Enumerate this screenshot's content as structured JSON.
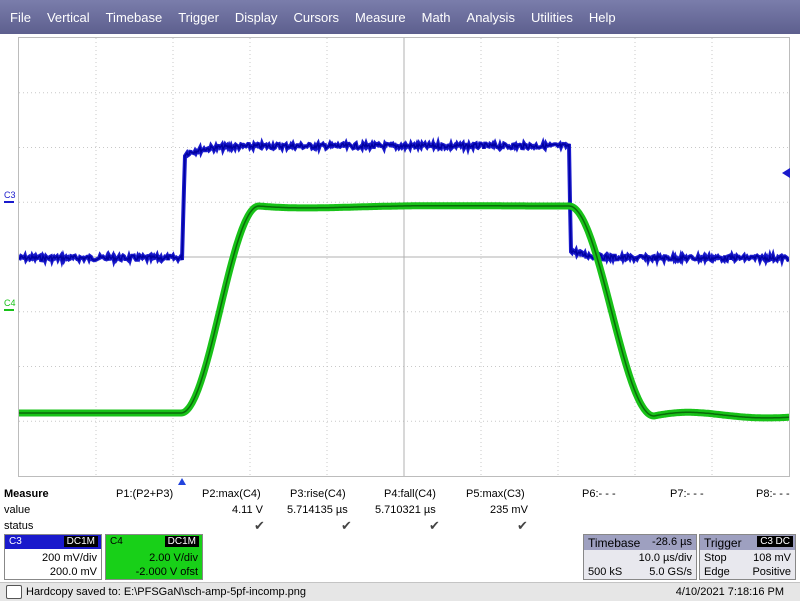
{
  "menu": [
    "File",
    "Vertical",
    "Timebase",
    "Trigger",
    "Display",
    "Cursors",
    "Measure",
    "Math",
    "Analysis",
    "Utilities",
    "Help"
  ],
  "channels": {
    "c3": {
      "label": "C3",
      "color": "#1a1acc"
    },
    "c4": {
      "label": "C4",
      "color": "#18c218"
    }
  },
  "measure": {
    "title": "Measure",
    "row_labels": [
      "value",
      "status"
    ],
    "params": [
      {
        "name": "P1:(P2+P3)",
        "value": "",
        "status": false
      },
      {
        "name": "P2:max(C4)",
        "value": "4.11 V",
        "status": true
      },
      {
        "name": "P3:rise(C4)",
        "value": "5.714135 µs",
        "status": true
      },
      {
        "name": "P4:fall(C4)",
        "value": "5.710321 µs",
        "status": true
      },
      {
        "name": "P5:max(C3)",
        "value": "235 mV",
        "status": true
      },
      {
        "name": "P6:- - -",
        "value": "",
        "status": false
      },
      {
        "name": "P7:- - -",
        "value": "",
        "status": false
      },
      {
        "name": "P8:- - -",
        "value": "",
        "status": false
      }
    ],
    "check_glyph": "✔"
  },
  "c3_box": {
    "name": "C3",
    "coupling": "DC1M",
    "vdiv": "200 mV/div",
    "offset": "200.0 mV"
  },
  "c4_box": {
    "name": "C4",
    "coupling": "DC1M",
    "vdiv": "2.00 V/div",
    "offset": "-2.000 V ofst"
  },
  "timebase": {
    "label": "Timebase",
    "delay": "-28.6 µs",
    "tdiv": "10.0 µs/div",
    "samples": "500 kS",
    "rate": "5.0 GS/s"
  },
  "trigger": {
    "label": "Trigger",
    "source": "C3",
    "coupling": "DC",
    "mode": "Stop",
    "level": "108 mV",
    "type": "Edge",
    "slope": "Positive"
  },
  "status": {
    "message": "Hardcopy saved to: E:\\PFSGaN\\sch-amp-5pf-incomp.png",
    "datetime": "4/10/2021 7:18:16 PM"
  }
}
